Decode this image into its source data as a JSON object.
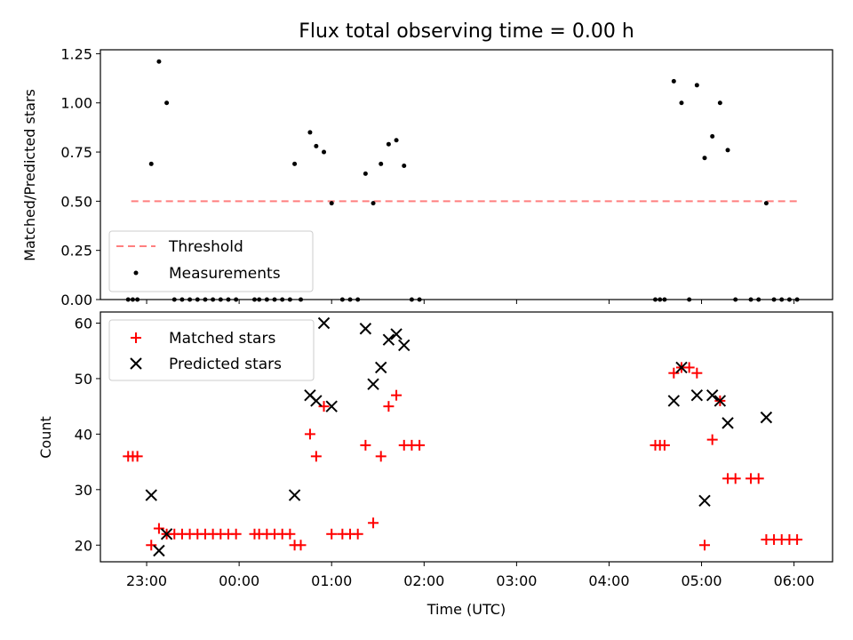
{
  "chart_data": [
    {
      "type": "scatter",
      "title": "Flux total observing time = 0.00 h",
      "xlabel": "",
      "ylabel": "Matched/Predicted stars",
      "ylim": [
        0,
        1.27
      ],
      "xlim": [
        "22:30",
        "06:25"
      ],
      "xticks": [
        "23:00",
        "00:00",
        "01:00",
        "02:00",
        "03:00",
        "04:00",
        "05:00",
        "06:00"
      ],
      "yticks": [
        "0.00",
        "0.25",
        "0.50",
        "0.75",
        "1.00",
        "1.25"
      ],
      "show_x_tick_labels": false,
      "grid": false,
      "legend": "lower-left",
      "series": [
        {
          "name": "Threshold",
          "kind": "line",
          "color": "#ff7f7f",
          "points": [
            [
              "22:50",
              0.5
            ],
            [
              "06:03",
              0.5
            ]
          ]
        },
        {
          "name": "Measurements",
          "kind": "dots",
          "color": "#000000",
          "points": [
            [
              "22:48",
              0.0
            ],
            [
              "22:51",
              0.0
            ],
            [
              "22:54",
              0.0
            ],
            [
              "23:03",
              0.69
            ],
            [
              "23:08",
              1.21
            ],
            [
              "23:13",
              1.0
            ],
            [
              "23:18",
              0.0
            ],
            [
              "23:23",
              0.0
            ],
            [
              "23:28",
              0.0
            ],
            [
              "23:33",
              0.0
            ],
            [
              "23:38",
              0.0
            ],
            [
              "23:43",
              0.0
            ],
            [
              "23:48",
              0.0
            ],
            [
              "23:53",
              0.0
            ],
            [
              "23:58",
              0.0
            ],
            [
              "00:10",
              0.0
            ],
            [
              "00:13",
              0.0
            ],
            [
              "00:18",
              0.0
            ],
            [
              "00:23",
              0.0
            ],
            [
              "00:28",
              0.0
            ],
            [
              "00:33",
              0.0
            ],
            [
              "00:36",
              0.69
            ],
            [
              "00:40",
              0.0
            ],
            [
              "00:46",
              0.85
            ],
            [
              "00:50",
              0.78
            ],
            [
              "00:55",
              0.75
            ],
            [
              "01:00",
              0.49
            ],
            [
              "01:07",
              0.0
            ],
            [
              "01:12",
              0.0
            ],
            [
              "01:17",
              0.0
            ],
            [
              "01:22",
              0.64
            ],
            [
              "01:27",
              0.49
            ],
            [
              "01:32",
              0.69
            ],
            [
              "01:37",
              0.79
            ],
            [
              "01:42",
              0.81
            ],
            [
              "01:47",
              0.68
            ],
            [
              "01:52",
              0.0
            ],
            [
              "01:57",
              0.0
            ],
            [
              "04:30",
              0.0
            ],
            [
              "04:33",
              0.0
            ],
            [
              "04:36",
              0.0
            ],
            [
              "04:42",
              1.11
            ],
            [
              "04:47",
              1.0
            ],
            [
              "04:52",
              0.0
            ],
            [
              "04:57",
              1.09
            ],
            [
              "05:02",
              0.72
            ],
            [
              "05:07",
              0.83
            ],
            [
              "05:12",
              1.0
            ],
            [
              "05:17",
              0.76
            ],
            [
              "05:22",
              0.0
            ],
            [
              "05:32",
              0.0
            ],
            [
              "05:37",
              0.0
            ],
            [
              "05:42",
              0.49
            ],
            [
              "05:47",
              0.0
            ],
            [
              "05:52",
              0.0
            ],
            [
              "05:57",
              0.0
            ],
            [
              "06:02",
              0.0
            ]
          ]
        }
      ]
    },
    {
      "type": "scatter",
      "title": "",
      "xlabel": "Time (UTC)",
      "ylabel": "Count",
      "ylim": [
        17,
        62
      ],
      "xlim": [
        "22:30",
        "06:25"
      ],
      "xticks": [
        "23:00",
        "00:00",
        "01:00",
        "02:00",
        "03:00",
        "04:00",
        "05:00",
        "06:00"
      ],
      "yticks": [
        "20",
        "30",
        "40",
        "50",
        "60"
      ],
      "show_x_tick_labels": true,
      "grid": false,
      "legend": "upper-left",
      "series": [
        {
          "name": "Matched stars",
          "kind": "plus",
          "color": "#ff0000",
          "points": [
            [
              "22:48",
              36
            ],
            [
              "22:51",
              36
            ],
            [
              "22:54",
              36
            ],
            [
              "23:03",
              20
            ],
            [
              "23:08",
              23
            ],
            [
              "23:13",
              22
            ],
            [
              "23:18",
              22
            ],
            [
              "23:23",
              22
            ],
            [
              "23:28",
              22
            ],
            [
              "23:33",
              22
            ],
            [
              "23:38",
              22
            ],
            [
              "23:43",
              22
            ],
            [
              "23:48",
              22
            ],
            [
              "23:53",
              22
            ],
            [
              "23:58",
              22
            ],
            [
              "00:10",
              22
            ],
            [
              "00:13",
              22
            ],
            [
              "00:18",
              22
            ],
            [
              "00:23",
              22
            ],
            [
              "00:28",
              22
            ],
            [
              "00:33",
              22
            ],
            [
              "00:36",
              20
            ],
            [
              "00:40",
              20
            ],
            [
              "00:46",
              40
            ],
            [
              "00:50",
              36
            ],
            [
              "00:55",
              45
            ],
            [
              "01:00",
              22
            ],
            [
              "01:07",
              22
            ],
            [
              "01:12",
              22
            ],
            [
              "01:17",
              22
            ],
            [
              "01:22",
              38
            ],
            [
              "01:27",
              24
            ],
            [
              "01:32",
              36
            ],
            [
              "01:37",
              45
            ],
            [
              "01:42",
              47
            ],
            [
              "01:47",
              38
            ],
            [
              "01:52",
              38
            ],
            [
              "01:57",
              38
            ],
            [
              "04:30",
              38
            ],
            [
              "04:33",
              38
            ],
            [
              "04:36",
              38
            ],
            [
              "04:42",
              51
            ],
            [
              "04:47",
              52
            ],
            [
              "04:52",
              52
            ],
            [
              "04:57",
              51
            ],
            [
              "05:02",
              20
            ],
            [
              "05:07",
              39
            ],
            [
              "05:12",
              46
            ],
            [
              "05:17",
              32
            ],
            [
              "05:22",
              32
            ],
            [
              "05:32",
              32
            ],
            [
              "05:37",
              32
            ],
            [
              "05:42",
              21
            ],
            [
              "05:47",
              21
            ],
            [
              "05:52",
              21
            ],
            [
              "05:57",
              21
            ],
            [
              "06:02",
              21
            ]
          ]
        },
        {
          "name": "Predicted stars",
          "kind": "x",
          "color": "#000000",
          "points": [
            [
              "23:03",
              29
            ],
            [
              "23:08",
              19
            ],
            [
              "23:13",
              22
            ],
            [
              "00:36",
              29
            ],
            [
              "00:46",
              47
            ],
            [
              "00:50",
              46
            ],
            [
              "00:55",
              60
            ],
            [
              "01:00",
              45
            ],
            [
              "01:22",
              59
            ],
            [
              "01:27",
              49
            ],
            [
              "01:32",
              52
            ],
            [
              "01:37",
              57
            ],
            [
              "01:42",
              58
            ],
            [
              "01:47",
              56
            ],
            [
              "04:42",
              46
            ],
            [
              "04:47",
              52
            ],
            [
              "04:57",
              47
            ],
            [
              "05:07",
              47
            ],
            [
              "05:12",
              46
            ],
            [
              "05:17",
              42
            ],
            [
              "05:02",
              28
            ],
            [
              "05:42",
              43
            ]
          ]
        }
      ]
    }
  ]
}
